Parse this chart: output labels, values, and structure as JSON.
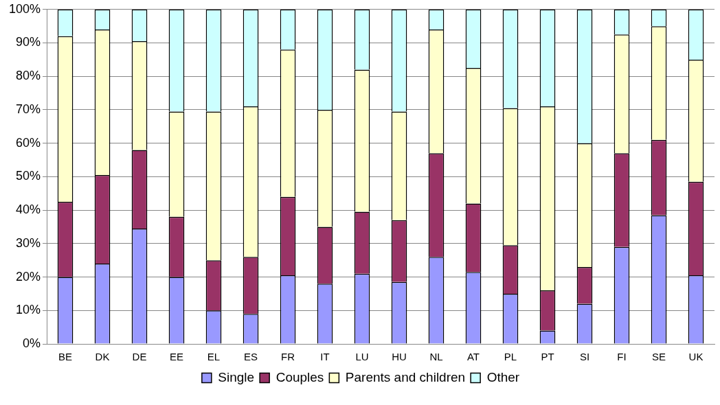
{
  "chart_data": {
    "type": "bar",
    "stacked": true,
    "categories": [
      "BE",
      "DK",
      "DE",
      "EE",
      "EL",
      "ES",
      "FR",
      "IT",
      "LU",
      "HU",
      "NL",
      "AT",
      "PL",
      "PT",
      "SI",
      "FI",
      "SE",
      "UK"
    ],
    "series": [
      {
        "name": "Single",
        "color": "#9999ff",
        "values": [
          20,
          24,
          34.5,
          20,
          10,
          9,
          20.5,
          18,
          21,
          18.5,
          26,
          21.5,
          15,
          4,
          12,
          29,
          38.5,
          20.5
        ]
      },
      {
        "name": "Couples",
        "color": "#993366",
        "values": [
          22.5,
          26.5,
          23.5,
          18,
          15,
          17,
          23.5,
          17,
          18.5,
          18.5,
          31,
          20.5,
          14.5,
          12,
          11,
          28,
          22.5,
          28
        ]
      },
      {
        "name": "Parents and children",
        "color": "#ffffcc",
        "values": [
          49.5,
          43.5,
          32.5,
          31.5,
          44.5,
          45,
          44,
          35,
          42.5,
          32.5,
          37,
          40.5,
          41,
          55,
          37,
          35.5,
          34,
          36.5
        ]
      },
      {
        "name": "Other",
        "color": "#ccffff",
        "values": [
          8,
          6,
          9.5,
          30.5,
          30.5,
          29,
          12,
          30,
          18,
          30.5,
          6,
          17.5,
          29.5,
          29,
          40,
          7.5,
          5,
          15
        ]
      }
    ],
    "ylim": [
      0,
      100
    ],
    "yticks": [
      {
        "value": 0,
        "label": "0%"
      },
      {
        "value": 10,
        "label": "10%"
      },
      {
        "value": 20,
        "label": "20%"
      },
      {
        "value": 30,
        "label": "30%"
      },
      {
        "value": 40,
        "label": "40%"
      },
      {
        "value": 50,
        "label": "50%"
      },
      {
        "value": 60,
        "label": "60%"
      },
      {
        "value": 70,
        "label": "70%"
      },
      {
        "value": 80,
        "label": "80%"
      },
      {
        "value": 90,
        "label": "90%"
      },
      {
        "value": 100,
        "label": "100%"
      }
    ],
    "grid": "y",
    "legend": "bottom"
  }
}
